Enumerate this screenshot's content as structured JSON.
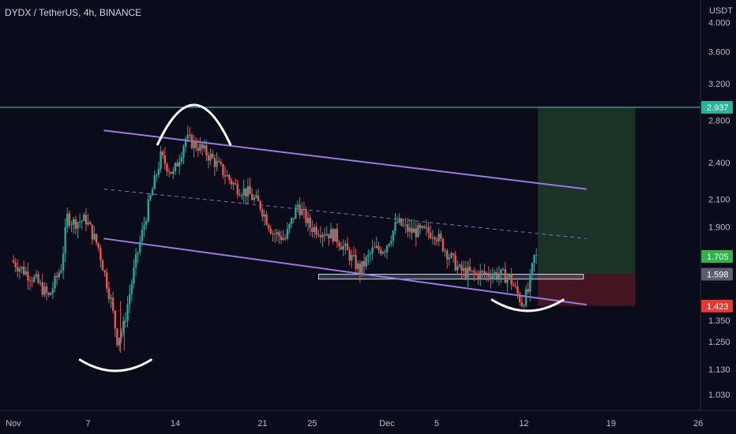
{
  "header": {
    "title": "DYDX / TetherUS, 4h, BINANCE"
  },
  "colors": {
    "background": "#0b0c1a",
    "up": "#26a69a",
    "down": "#ef5350",
    "channel": "#9a7ae0",
    "target_line": "#33d1c4",
    "target_zone": "#1f3a2a",
    "stop_zone": "#4a1522",
    "tag_target": "#2bb39a",
    "tag_current": "#2fb34a",
    "tag_entry": "#5b5f6b",
    "tag_stop": "#e53935",
    "axis_text": "#b8bcc7"
  },
  "chart_data": {
    "type": "candlestick",
    "title": "DYDX / TetherUS, 4h, BINANCE",
    "y_unit": "USDT",
    "ylim": [
      0.95,
      4.2
    ],
    "y_scale": "log",
    "y_ticks": [
      "4.000",
      "3.600",
      "3.200",
      "2.800",
      "2.400",
      "2.100",
      "1.900",
      "1.598",
      "1.350",
      "1.250",
      "1.130",
      "1.030"
    ],
    "x_ticks": [
      "Nov",
      "7",
      "14",
      "21",
      "25",
      "Dec",
      "5",
      "12",
      "19",
      "26"
    ],
    "price_path": [
      {
        "date": "Nov 1",
        "price": 1.68
      },
      {
        "date": "Nov 3",
        "price": 1.56
      },
      {
        "date": "Nov 4",
        "price": 1.47
      },
      {
        "date": "Nov 5",
        "price": 1.64
      },
      {
        "date": "Nov 5",
        "price": 1.97
      },
      {
        "date": "Nov 6",
        "price": 1.93
      },
      {
        "date": "Nov 7",
        "price": 1.95
      },
      {
        "date": "Nov 8",
        "price": 1.76
      },
      {
        "date": "Nov 9",
        "price": 1.45
      },
      {
        "date": "Nov 9",
        "price": 1.26
      },
      {
        "date": "Nov 10",
        "price": 1.32
      },
      {
        "date": "Nov 11",
        "price": 1.68
      },
      {
        "date": "Nov 12",
        "price": 2.05
      },
      {
        "date": "Nov 13",
        "price": 2.45
      },
      {
        "date": "Nov 14",
        "price": 2.3
      },
      {
        "date": "Nov 15",
        "price": 2.62
      },
      {
        "date": "Nov 16",
        "price": 2.55
      },
      {
        "date": "Nov 17",
        "price": 2.45
      },
      {
        "date": "Nov 19",
        "price": 2.2
      },
      {
        "date": "Nov 20",
        "price": 2.15
      },
      {
        "date": "Nov 21",
        "price": 2.05
      },
      {
        "date": "Nov 22",
        "price": 1.86
      },
      {
        "date": "Nov 23",
        "price": 1.82
      },
      {
        "date": "Nov 24",
        "price": 2.06
      },
      {
        "date": "Nov 25",
        "price": 1.9
      },
      {
        "date": "Nov 27",
        "price": 1.84
      },
      {
        "date": "Nov 28",
        "price": 1.73
      },
      {
        "date": "Nov 29",
        "price": 1.62
      },
      {
        "date": "Nov 30",
        "price": 1.74
      },
      {
        "date": "Dec 1",
        "price": 1.76
      },
      {
        "date": "Dec 2",
        "price": 1.93
      },
      {
        "date": "Dec 3",
        "price": 1.87
      },
      {
        "date": "Dec 5",
        "price": 1.86
      },
      {
        "date": "Dec 6",
        "price": 1.73
      },
      {
        "date": "Dec 7",
        "price": 1.62
      },
      {
        "date": "Dec 8",
        "price": 1.6
      },
      {
        "date": "Dec 10",
        "price": 1.6
      },
      {
        "date": "Dec 11",
        "price": 1.58
      },
      {
        "date": "Dec 12",
        "price": 1.44
      },
      {
        "date": "Dec 12",
        "price": 1.5
      },
      {
        "date": "Dec 13",
        "price": 1.7
      }
    ],
    "annotations": {
      "channel_upper": {
        "from": {
          "date": "Nov 8",
          "price": 2.7
        },
        "to": {
          "date": "Dec 15",
          "price": 2.18
        }
      },
      "channel_mid": {
        "from": {
          "date": "Nov 8",
          "price": 2.18
        },
        "to": {
          "date": "Dec 15",
          "price": 1.82
        }
      },
      "channel_lower": {
        "from": {
          "date": "Nov 8",
          "price": 1.82
        },
        "to": {
          "date": "Dec 15",
          "price": 1.43
        }
      },
      "support_box": {
        "from": {
          "date": "Nov 25",
          "price": 1.598
        },
        "to": {
          "date": "Dec 15",
          "price": 1.57
        }
      },
      "target_level": 2.937,
      "trade_box": {
        "from_date": "Dec 13",
        "to_date": "Dec 20",
        "target": 2.937,
        "entry": 1.598,
        "stop": 1.423
      }
    },
    "price_tags": [
      {
        "label": "2.937",
        "price": 2.937,
        "role": "target"
      },
      {
        "label": "1.705",
        "price": 1.705,
        "role": "current"
      },
      {
        "label": "1.598",
        "price": 1.598,
        "role": "entry"
      },
      {
        "label": "1.423",
        "price": 1.423,
        "role": "stop"
      }
    ]
  }
}
